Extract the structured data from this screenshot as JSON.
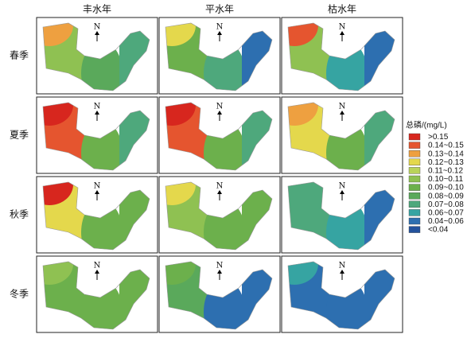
{
  "columns": [
    "丰水年",
    "平水年",
    "枯水年"
  ],
  "rows": [
    "春季",
    "夏季",
    "秋季",
    "冬季"
  ],
  "north_label": "N",
  "legend": {
    "title": "总磷/(mg/L)",
    "items": [
      {
        "label": ">0.15",
        "color": "#d7261e"
      },
      {
        "label": "0.14~0.15",
        "color": "#e5552f"
      },
      {
        "label": "0.13~0.14",
        "color": "#eea040"
      },
      {
        "label": "0.12~0.13",
        "color": "#e4d84c"
      },
      {
        "label": "0.11~0.12",
        "color": "#b9d35a"
      },
      {
        "label": "0.10~0.11",
        "color": "#8fc152"
      },
      {
        "label": "0.09~0.10",
        "color": "#6cb04c"
      },
      {
        "label": "0.08~0.09",
        "color": "#5aa95b"
      },
      {
        "label": "0.07~0.08",
        "color": "#4ea87c"
      },
      {
        "label": "0.06~0.07",
        "color": "#36a4a2"
      },
      {
        "label": "0.04~0.06",
        "color": "#2d6fb0"
      },
      {
        "label": "<0.04",
        "color": "#23529c"
      }
    ]
  }
}
